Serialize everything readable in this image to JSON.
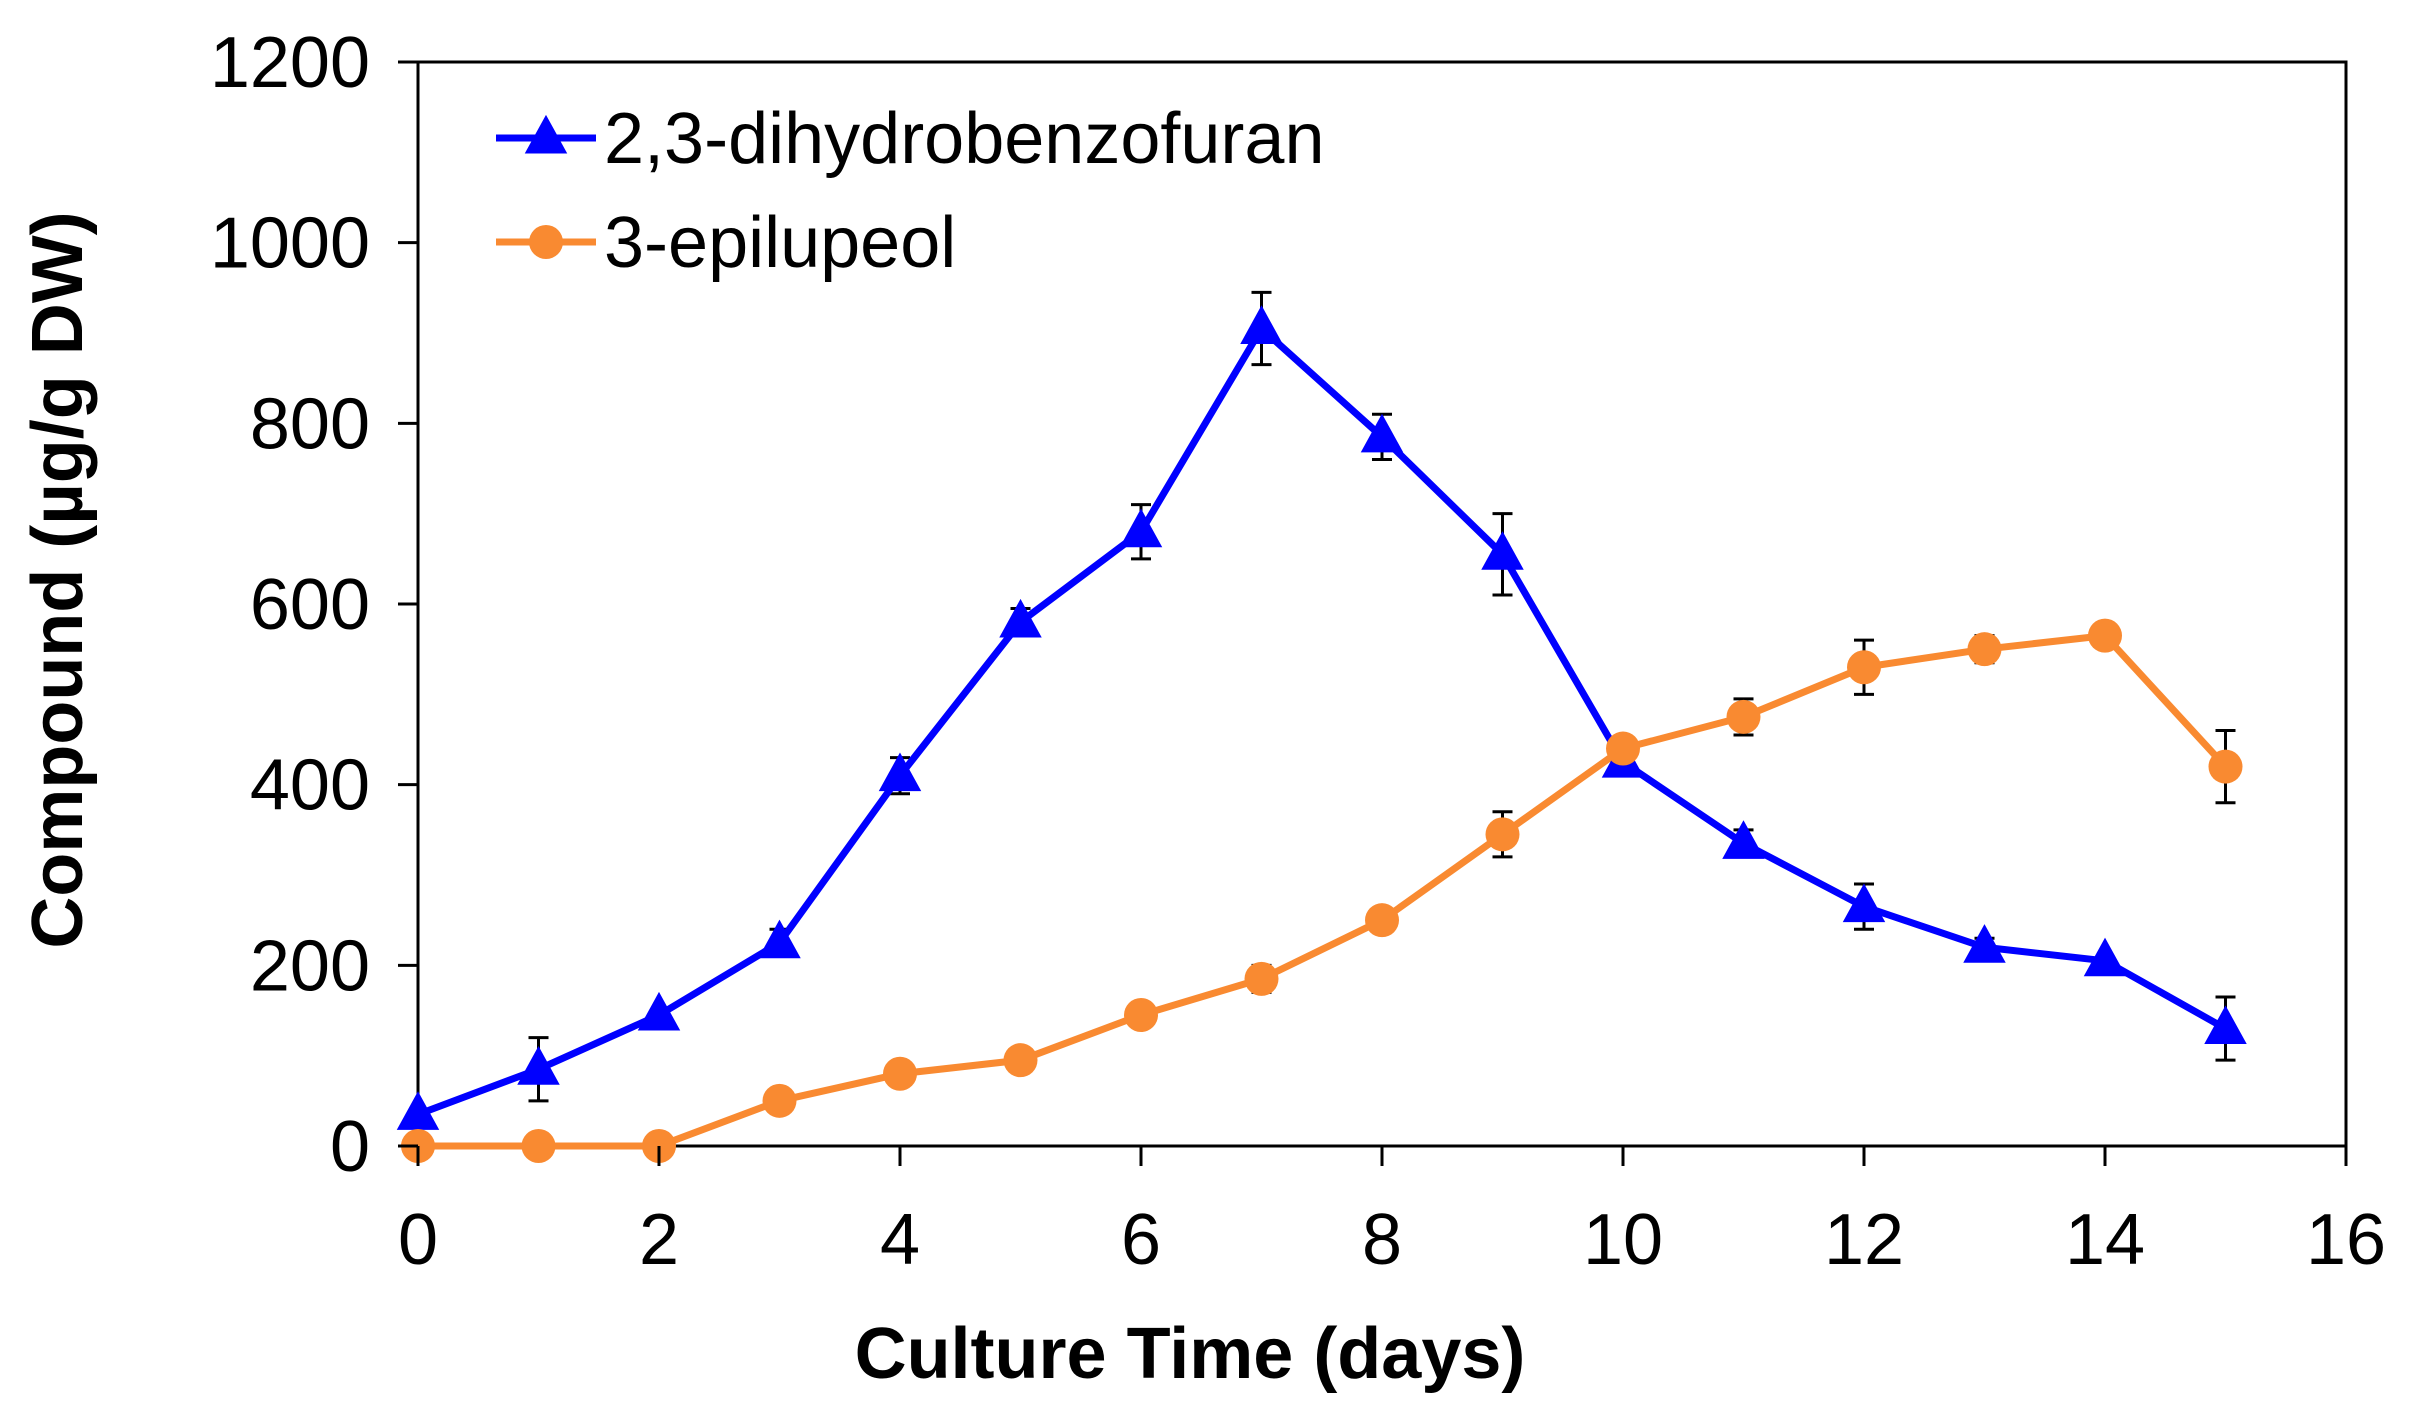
{
  "chart_data": {
    "type": "line",
    "xlabel": "Culture Time (days)",
    "ylabel": "Compound (µg/g DW)",
    "xlim": [
      0,
      16
    ],
    "ylim": [
      0,
      1200
    ],
    "xticks": [
      "0",
      "2",
      "4",
      "6",
      "8",
      "10",
      "12",
      "14",
      "16"
    ],
    "yticks": [
      "0",
      "200",
      "400",
      "600",
      "800",
      "1000",
      "1200"
    ],
    "grid": false,
    "legend_position": "top-left",
    "series": [
      {
        "name": "2,3-dihydrobenzofuran",
        "color": "#0000ff",
        "marker": "triangle",
        "x": [
          0,
          1,
          2,
          3,
          4,
          5,
          6,
          7,
          8,
          9,
          10,
          11,
          12,
          13,
          14,
          15
        ],
        "y": [
          35,
          85,
          145,
          225,
          410,
          580,
          680,
          905,
          785,
          655,
          425,
          335,
          265,
          220,
          205,
          130
        ],
        "error": [
          0,
          35,
          0,
          15,
          20,
          15,
          30,
          40,
          25,
          45,
          0,
          15,
          25,
          10,
          0,
          35
        ]
      },
      {
        "name": "3-epilupeol",
        "color": "#f98a31",
        "marker": "circle",
        "x": [
          0,
          1,
          2,
          3,
          4,
          5,
          6,
          7,
          8,
          9,
          10,
          11,
          12,
          13,
          14,
          15
        ],
        "y": [
          0,
          0,
          0,
          50,
          80,
          95,
          145,
          185,
          250,
          345,
          440,
          475,
          530,
          550,
          565,
          420
        ],
        "error": [
          0,
          0,
          0,
          0,
          0,
          0,
          0,
          15,
          0,
          25,
          0,
          20,
          30,
          15,
          0,
          40
        ]
      }
    ]
  }
}
